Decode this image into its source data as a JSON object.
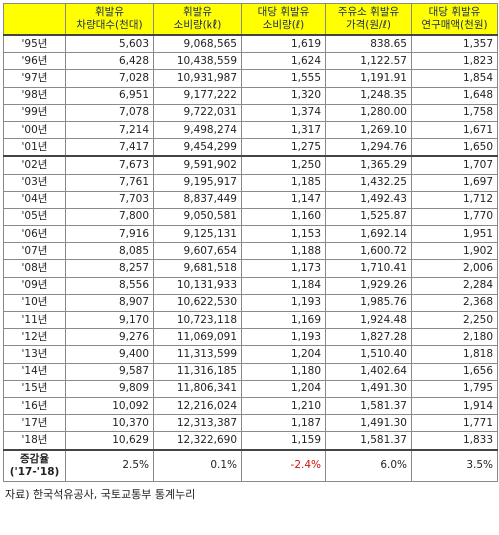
{
  "headers": [
    [
      "",
      ""
    ],
    [
      "휘발유",
      "차량대수(천대)"
    ],
    [
      "휘발유",
      "소비량(㎘)"
    ],
    [
      "대당 휘발유",
      "소비량(ℓ)"
    ],
    [
      "주유소 휘발유",
      "가격(원/ℓ)"
    ],
    [
      "대당 휘발유",
      "연구매액(천원)"
    ]
  ],
  "rows": [
    [
      "'95년",
      "5,603",
      "9,068,565",
      "1,619",
      "838.65",
      "1,357"
    ],
    [
      "'96년",
      "6,428",
      "10,438,559",
      "1,624",
      "1,122.57",
      "1,823"
    ],
    [
      "'97년",
      "7,028",
      "10,931,987",
      "1,555",
      "1,191.91",
      "1,854"
    ],
    [
      "'98년",
      "6,951",
      "9,177,222",
      "1,320",
      "1,248.35",
      "1,648"
    ],
    [
      "'99년",
      "7,078",
      "9,722,031",
      "1,374",
      "1,280.00",
      "1,758"
    ],
    [
      "'00년",
      "7,214",
      "9,498,274",
      "1,317",
      "1,269.10",
      "1,671"
    ],
    [
      "'01년",
      "7,417",
      "9,454,299",
      "1,275",
      "1,294.76",
      "1,650"
    ],
    [
      "'02년",
      "7,673",
      "9,591,902",
      "1,250",
      "1,365.29",
      "1,707"
    ],
    [
      "'03년",
      "7,761",
      "9,195,917",
      "1,185",
      "1,432.25",
      "1,697"
    ],
    [
      "'04년",
      "7,703",
      "8,837,449",
      "1,147",
      "1,492.43",
      "1,712"
    ],
    [
      "'05년",
      "7,800",
      "9,050,581",
      "1,160",
      "1,525.87",
      "1,770"
    ],
    [
      "'06년",
      "7,916",
      "9,125,131",
      "1,153",
      "1,692.14",
      "1,951"
    ],
    [
      "'07년",
      "8,085",
      "9,607,654",
      "1,188",
      "1,600.72",
      "1,902"
    ],
    [
      "'08년",
      "8,257",
      "9,681,518",
      "1,173",
      "1,710.41",
      "2,006"
    ],
    [
      "'09년",
      "8,556",
      "10,131,933",
      "1,184",
      "1,929.26",
      "2,284"
    ],
    [
      "'10년",
      "8,907",
      "10,622,530",
      "1,193",
      "1,985.76",
      "2,368"
    ],
    [
      "'11년",
      "9,170",
      "10,723,118",
      "1,169",
      "1,924.48",
      "2,250"
    ],
    [
      "'12년",
      "9,276",
      "11,069,091",
      "1,193",
      "1,827.28",
      "2,180"
    ],
    [
      "'13년",
      "9,400",
      "11,313,599",
      "1,204",
      "1,510.40",
      "1,818"
    ],
    [
      "'14년",
      "9,587",
      "11,316,185",
      "1,180",
      "1,402.64",
      "1,656"
    ],
    [
      "'15년",
      "9,809",
      "11,806,341",
      "1,204",
      "1,491.30",
      "1,795"
    ],
    [
      "'16년",
      "10,092",
      "12,216,024",
      "1,210",
      "1,581.37",
      "1,914"
    ],
    [
      "'17년",
      "10,370",
      "12,313,387",
      "1,187",
      "1,491.30",
      "1,771"
    ],
    [
      "'18년",
      "10,629",
      "12,322,690",
      "1,159",
      "1,581.37",
      "1,833"
    ]
  ],
  "rate_row": {
    "label_line1": "증감율",
    "label_line2": "('17-'18)",
    "values": [
      "2.5%",
      "0.1%",
      "-2.4%",
      "6.0%",
      "3.5%"
    ]
  },
  "source": "자료) 한국석유공사, 국토교통부 통계누리",
  "colors": {
    "header_bg": "#ffff00",
    "negative": "#d01010"
  }
}
